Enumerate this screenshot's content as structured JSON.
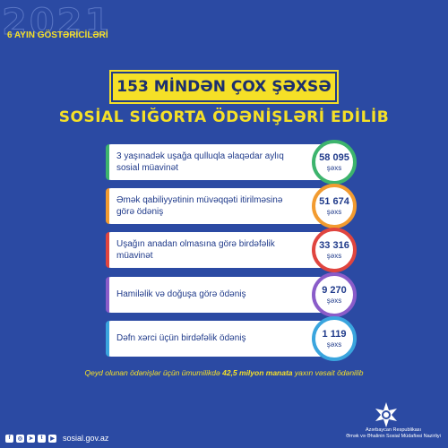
{
  "year": "2021",
  "period": "6 AYIN GÖSTƏRİCİLƏRİ",
  "headline": "153 MİNDƏN ÇOX ŞƏXSƏ",
  "subheadline": "SOSİAL SIĞORTA ÖDƏNİŞLƏRİ EDİLİB",
  "items": [
    {
      "label": "3 yaşınadək uşağa qulluqla əlaqədar aylıq sosial müavinət",
      "value": "58 095",
      "unit": "şəxs",
      "color": "#3db46d"
    },
    {
      "label": "Əmək qabiliyyətinin müvəqqəti itirilməsinə görə ödəniş",
      "value": "51 674",
      "unit": "şəxs",
      "color": "#f29b30"
    },
    {
      "label": "Uşağın anadan olmasına görə birdəfəlik müavinət",
      "value": "33 316",
      "unit": "şəxs",
      "color": "#e0453f"
    },
    {
      "label": "Hamiləlik və doğuşa görə ödəniş",
      "value": "9 270",
      "unit": "şəxs",
      "color": "#8a5cc9"
    },
    {
      "label": "Dəfn xərci üçün birdəfəlik ödəniş",
      "value": "1 119",
      "unit": "şəxs",
      "color": "#3aa5de"
    }
  ],
  "footnote": {
    "before": "Qeyd olunan ödənişlər üçün ümumilikdə ",
    "bold": "42,5 milyon manata",
    "after": " yaxın vəsait ödənilib"
  },
  "website": "sosial.gov.az",
  "social_icons": [
    "facebook-icon",
    "instagram-icon",
    "telegram-icon",
    "twitter-icon",
    "youtube-icon"
  ],
  "org": {
    "line1": "Azərbaycan Respublikası",
    "line2": "Əmək və Əhalinin Sosial Müdafiəsi Nazirliyi"
  }
}
